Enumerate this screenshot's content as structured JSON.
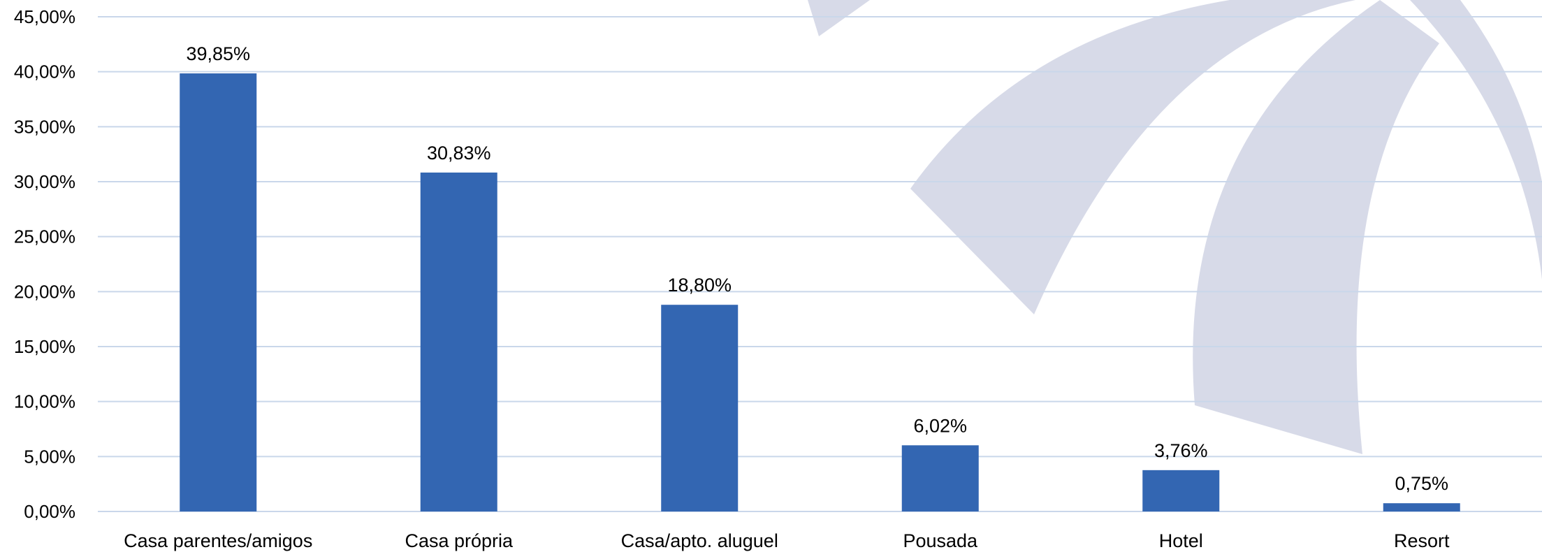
{
  "chart_data": {
    "type": "bar",
    "categories": [
      "Casa parentes/amigos",
      "Casa própria",
      "Casa/apto. aluguel",
      "Pousada",
      "Hotel",
      "Resort"
    ],
    "values": [
      39.85,
      30.83,
      18.8,
      6.02,
      3.76,
      0.75
    ],
    "data_labels": [
      "39,85%",
      "30,83%",
      "18,80%",
      "6,02%",
      "3,76%",
      "0,75%"
    ],
    "y_ticks": [
      "0,00%",
      "5,00%",
      "10,00%",
      "15,00%",
      "20,00%",
      "25,00%",
      "30,00%",
      "35,00%",
      "40,00%",
      "45,00%"
    ],
    "ylim": [
      0,
      45
    ],
    "title": "",
    "xlabel": "",
    "ylabel": "",
    "grid": true,
    "legend": "none",
    "bar_color": "#3366b2",
    "grid_color": "#c9d7ea",
    "watermark_color": "#d7dae8"
  }
}
